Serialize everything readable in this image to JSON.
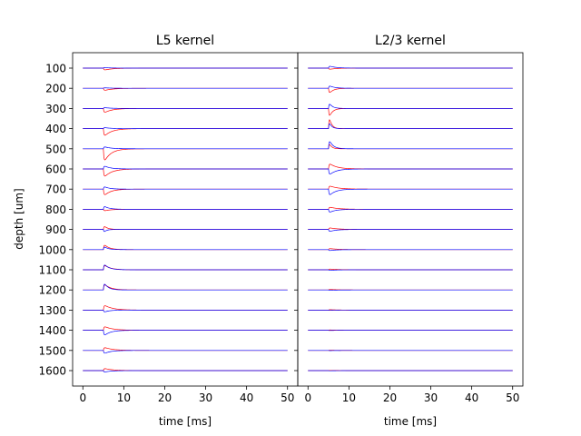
{
  "chart_data": [
    {
      "type": "line",
      "title": "L5 kernel",
      "xlabel": "time [ms]",
      "ylabel": "depth [um]",
      "xlim": [
        -2.5,
        52.5
      ],
      "x_ticks": [
        0,
        10,
        20,
        30,
        40,
        50
      ],
      "depth_ticks": [
        100,
        200,
        300,
        400,
        500,
        600,
        700,
        800,
        900,
        1000,
        1100,
        1200,
        1300,
        1400,
        1500,
        1600
      ],
      "onset_ms": 5,
      "series": [
        {
          "color": "#ff0000",
          "peak_amplitude": [
            -0.18,
            -0.2,
            -0.4,
            -0.7,
            -1.2,
            -0.75,
            -0.6,
            -0.15,
            0.35,
            0.5,
            0.45,
            0.55,
            0.45,
            0.35,
            0.28,
            0.2
          ],
          "decay_ms": [
            2.0,
            2.0,
            1.8,
            1.8,
            1.6,
            1.8,
            1.6,
            1.5,
            0.9,
            1.2,
            1.5,
            1.5,
            2.0,
            2.0,
            2.0,
            2.0
          ]
        },
        {
          "color": "#0000ff",
          "peak_amplitude": [
            0.05,
            0.05,
            0.08,
            0.1,
            0.2,
            0.3,
            0.25,
            0.3,
            -0.3,
            0.3,
            0.55,
            0.7,
            -0.2,
            -0.5,
            -0.3,
            -0.15
          ],
          "decay_ms": [
            1.5,
            1.5,
            1.5,
            1.5,
            1.5,
            1.4,
            1.2,
            1.2,
            0.6,
            1.0,
            1.2,
            1.0,
            1.2,
            1.5,
            1.5,
            1.5
          ]
        }
      ]
    },
    {
      "type": "line",
      "title": "L2/3 kernel",
      "xlabel": "time [ms]",
      "xlim": [
        -2.5,
        52.5
      ],
      "x_ticks": [
        0,
        10,
        20,
        30,
        40,
        50
      ],
      "onset_ms": 5,
      "series": [
        {
          "color": "#ff0000",
          "peak_amplitude": [
            -0.12,
            -0.5,
            -0.9,
            1.3,
            0.6,
            0.5,
            0.3,
            0.2,
            0.15,
            0.1,
            0.07,
            0.05,
            0.04,
            0.03,
            0.02,
            0.02
          ],
          "decay_ms": [
            1.5,
            1.0,
            0.8,
            0.6,
            0.6,
            1.8,
            2.0,
            2.0,
            2.0,
            2.0,
            2.0,
            2.0,
            2.0,
            2.0,
            2.0,
            2.0
          ]
        },
        {
          "color": "#0000ff",
          "peak_amplitude": [
            0.2,
            0.25,
            0.55,
            0.7,
            0.9,
            -0.55,
            -0.6,
            -0.3,
            -0.2,
            -0.1,
            -0.06,
            -0.04,
            -0.03,
            -0.02,
            -0.02,
            -0.02
          ],
          "decay_ms": [
            1.5,
            1.2,
            0.8,
            0.6,
            0.9,
            1.6,
            1.5,
            1.5,
            1.5,
            1.5,
            1.5,
            1.5,
            1.5,
            1.5,
            1.5,
            1.5
          ]
        }
      ]
    }
  ]
}
